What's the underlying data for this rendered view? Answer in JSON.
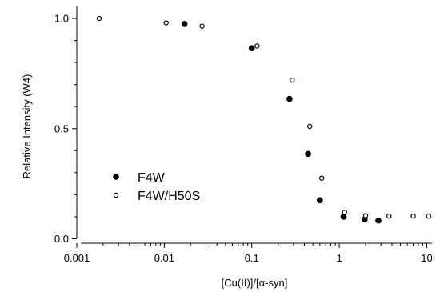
{
  "chart_data": {
    "type": "scatter",
    "title": "",
    "xlabel": "[Cu(II)]/[α-syn]",
    "ylabel": "Relative Intensity (W4)",
    "xscale": "log",
    "xlim": [
      0.001,
      11
    ],
    "ylim": [
      -0.02,
      1.04
    ],
    "xticks": [
      {
        "value": 0.001,
        "label": "0.001"
      },
      {
        "value": 0.01,
        "label": "0.01"
      },
      {
        "value": 0.1,
        "label": "0.1"
      },
      {
        "value": 1,
        "label": "1"
      },
      {
        "value": 10,
        "label": "10"
      }
    ],
    "yticks": [
      {
        "value": 0.0,
        "label": "0.0"
      },
      {
        "value": 0.5,
        "label": "0.5"
      },
      {
        "value": 1.0,
        "label": "1.0"
      }
    ],
    "grid": false,
    "legend_position": "middle-left",
    "series": [
      {
        "name": "F4W",
        "marker": "filled-circle",
        "color": "#000000",
        "points": [
          {
            "x": 0.017,
            "y": 0.975
          },
          {
            "x": 0.1,
            "y": 0.865
          },
          {
            "x": 0.27,
            "y": 0.635
          },
          {
            "x": 0.44,
            "y": 0.385
          },
          {
            "x": 0.6,
            "y": 0.175
          },
          {
            "x": 1.12,
            "y": 0.1
          },
          {
            "x": 1.95,
            "y": 0.088
          },
          {
            "x": 2.8,
            "y": 0.083
          }
        ]
      },
      {
        "name": "F4W/H50S",
        "marker": "open-circle",
        "color": "#000000",
        "points": [
          {
            "x": 0.0018,
            "y": 1.0
          },
          {
            "x": 0.0105,
            "y": 0.98
          },
          {
            "x": 0.027,
            "y": 0.965
          },
          {
            "x": 0.115,
            "y": 0.875
          },
          {
            "x": 0.29,
            "y": 0.72
          },
          {
            "x": 0.46,
            "y": 0.51
          },
          {
            "x": 0.63,
            "y": 0.275
          },
          {
            "x": 1.15,
            "y": 0.12
          },
          {
            "x": 2.0,
            "y": 0.105
          },
          {
            "x": 3.7,
            "y": 0.103
          },
          {
            "x": 7.0,
            "y": 0.103
          },
          {
            "x": 10.5,
            "y": 0.103
          }
        ]
      }
    ]
  }
}
